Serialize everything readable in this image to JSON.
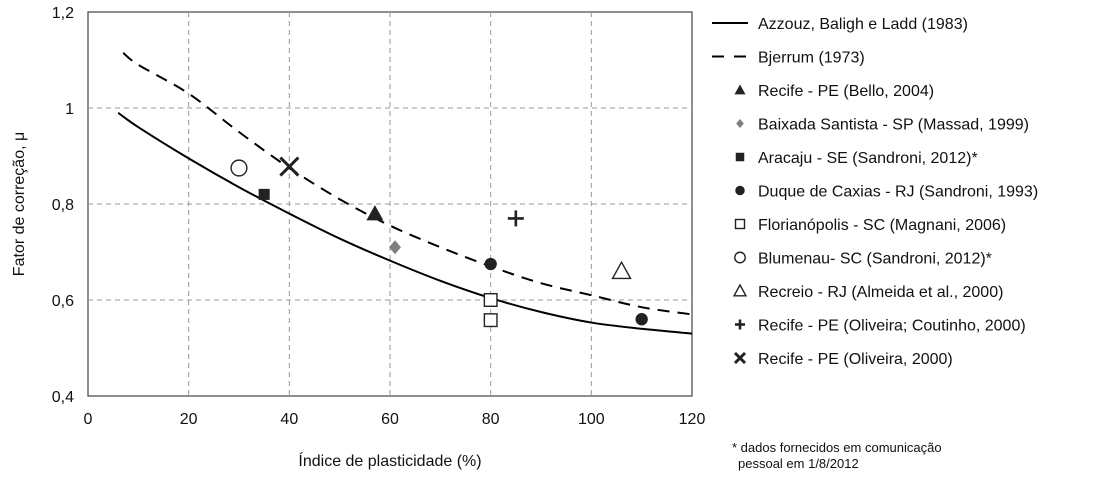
{
  "chart_data": {
    "type": "scatter",
    "xlabel": "Índice de plasticidade  (%)",
    "ylabel": "Fator de correção, μ",
    "xlim": [
      0,
      120
    ],
    "ylim": [
      0.4,
      1.2
    ],
    "x_ticks": [
      0,
      20,
      40,
      60,
      80,
      100,
      120
    ],
    "y_ticks": [
      0.4,
      0.6,
      0.8,
      1.0,
      1.2
    ],
    "x_tick_labels": [
      "0",
      "20",
      "40",
      "60",
      "80",
      "100",
      "120"
    ],
    "y_tick_labels": [
      "0,4",
      "0,6",
      "0,8",
      "1",
      "1,2"
    ],
    "grid": true,
    "legend_position": "right",
    "series": [
      {
        "name": "Azzouz, Baligh e Ladd (1983)",
        "kind": "line",
        "style": "solid",
        "color": "#000000",
        "x": [
          6,
          10,
          20,
          30,
          40,
          50,
          60,
          70,
          80,
          90,
          100,
          110,
          120
        ],
        "y": [
          0.99,
          0.96,
          0.895,
          0.835,
          0.78,
          0.728,
          0.682,
          0.64,
          0.604,
          0.575,
          0.553,
          0.54,
          0.53
        ]
      },
      {
        "name": "Bjerrum (1973)",
        "kind": "line",
        "style": "dashed",
        "color": "#000000",
        "x": [
          7,
          10,
          20,
          30,
          40,
          50,
          60,
          70,
          80,
          90,
          100,
          110,
          120
        ],
        "y": [
          1.115,
          1.09,
          1.03,
          0.95,
          0.875,
          0.81,
          0.755,
          0.71,
          0.67,
          0.635,
          0.61,
          0.585,
          0.57
        ]
      },
      {
        "name": "Recife - PE (Bello, 2004)",
        "kind": "marker",
        "marker": "triangle-filled",
        "color": "#222222",
        "x": [
          57
        ],
        "y": [
          0.78
        ]
      },
      {
        "name": "Baixada Santista - SP (Massad, 1999)",
        "kind": "marker",
        "marker": "diamond-filled",
        "color": "#7f7f7f",
        "x": [
          61
        ],
        "y": [
          0.71
        ]
      },
      {
        "name": "Aracaju - SE (Sandroni, 2012)*",
        "kind": "marker",
        "marker": "square-filled",
        "color": "#222222",
        "x": [
          35
        ],
        "y": [
          0.82
        ]
      },
      {
        "name": "Duque de Caxias - RJ (Sandroni, 1993)",
        "kind": "marker",
        "marker": "circle-filled",
        "color": "#222222",
        "x": [
          80,
          110
        ],
        "y": [
          0.675,
          0.56
        ]
      },
      {
        "name": "Florianópolis - SC (Magnani, 2006)",
        "kind": "marker",
        "marker": "square-open",
        "color": "#222222",
        "x": [
          80,
          80
        ],
        "y": [
          0.6,
          0.558
        ]
      },
      {
        "name": "Blumenau- SC (Sandroni, 2012)*",
        "kind": "marker",
        "marker": "circle-open",
        "color": "#222222",
        "x": [
          30
        ],
        "y": [
          0.875
        ]
      },
      {
        "name": "Recreio - RJ (Almeida et al., 2000)",
        "kind": "marker",
        "marker": "triangle-open",
        "color": "#222222",
        "x": [
          106
        ],
        "y": [
          0.66
        ]
      },
      {
        "name": "Recife - PE (Oliveira; Coutinho, 2000)",
        "kind": "marker",
        "marker": "plus",
        "color": "#222222",
        "x": [
          85
        ],
        "y": [
          0.77
        ]
      },
      {
        "name": "Recife - PE (Oliveira, 2000)",
        "kind": "marker",
        "marker": "cross",
        "color": "#222222",
        "x": [
          40
        ],
        "y": [
          0.878
        ]
      }
    ],
    "footnote": [
      "* dados fornecidos em comunicação",
      "pessoal em 1/8/2012"
    ]
  }
}
